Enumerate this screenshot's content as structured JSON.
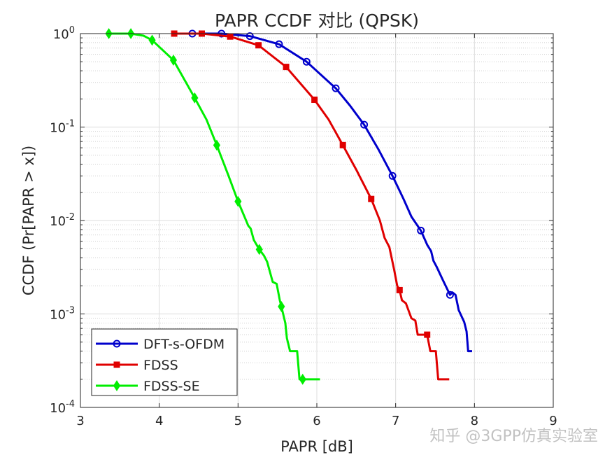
{
  "chart_data": {
    "type": "line",
    "title": "PAPR CCDF 对比 (QPSK)",
    "xlabel": "PAPR [dB]",
    "ylabel": "CCDF (Pr[PAPR > x])",
    "xlim": [
      3,
      9
    ],
    "ylim": [
      0.0001,
      1
    ],
    "yscale": "log",
    "xticks": [
      "3",
      "4",
      "5",
      "6",
      "7",
      "8",
      "9"
    ],
    "yticks": [
      {
        "base": "10",
        "exp": "0"
      },
      {
        "base": "10",
        "exp": "-1"
      },
      {
        "base": "10",
        "exp": "-2"
      },
      {
        "base": "10",
        "exp": "-3"
      },
      {
        "base": "10",
        "exp": "-4"
      }
    ],
    "grid": true,
    "minor_grid": true,
    "legend_position": "bottom-left",
    "series": [
      {
        "name": "DFT-s-OFDM",
        "color": "#0000cc",
        "marker": "circle",
        "points": [
          [
            4.42,
            1
          ],
          [
            4.79,
            1
          ],
          [
            5.15,
            0.94
          ],
          [
            5.52,
            0.77
          ],
          [
            5.87,
            0.5
          ],
          [
            6.24,
            0.26
          ],
          [
            6.42,
            0.17
          ],
          [
            6.6,
            0.106
          ],
          [
            6.78,
            0.058
          ],
          [
            6.96,
            0.03
          ],
          [
            7.1,
            0.017
          ],
          [
            7.2,
            0.011
          ],
          [
            7.32,
            0.0078
          ],
          [
            7.4,
            0.0055
          ],
          [
            7.45,
            0.0047
          ],
          [
            7.48,
            0.0037
          ],
          [
            7.52,
            0.0032
          ],
          [
            7.6,
            0.0023
          ],
          [
            7.69,
            0.0016
          ],
          [
            7.72,
            0.0017
          ],
          [
            7.76,
            0.0016
          ],
          [
            7.8,
            0.0011
          ],
          [
            7.87,
            0.00082
          ],
          [
            7.9,
            0.00065
          ],
          [
            7.92,
            0.0004
          ],
          [
            7.97,
            0.0004
          ]
        ],
        "markers": [
          [
            4.42,
            1
          ],
          [
            4.79,
            1
          ],
          [
            5.15,
            0.94
          ],
          [
            5.52,
            0.77
          ],
          [
            5.87,
            0.5
          ],
          [
            6.24,
            0.26
          ],
          [
            6.6,
            0.106
          ],
          [
            6.96,
            0.03
          ],
          [
            7.32,
            0.0078
          ],
          [
            7.69,
            0.0016
          ]
        ]
      },
      {
        "name": "FDSS",
        "color": "#e00000",
        "marker": "square",
        "points": [
          [
            4.19,
            1
          ],
          [
            4.54,
            1
          ],
          [
            4.9,
            0.93
          ],
          [
            5.26,
            0.75
          ],
          [
            5.61,
            0.44
          ],
          [
            5.97,
            0.196
          ],
          [
            6.15,
            0.12
          ],
          [
            6.33,
            0.064
          ],
          [
            6.5,
            0.035
          ],
          [
            6.69,
            0.017
          ],
          [
            6.8,
            0.01
          ],
          [
            6.86,
            0.0065
          ],
          [
            6.92,
            0.0052
          ],
          [
            6.98,
            0.003
          ],
          [
            7.02,
            0.002
          ],
          [
            7.05,
            0.0018
          ],
          [
            7.08,
            0.0014
          ],
          [
            7.13,
            0.0013
          ],
          [
            7.2,
            0.0009
          ],
          [
            7.25,
            0.00085
          ],
          [
            7.28,
            0.0006
          ],
          [
            7.4,
            0.0006
          ],
          [
            7.44,
            0.0004
          ],
          [
            7.51,
            0.0004
          ],
          [
            7.54,
            0.0002
          ],
          [
            7.68,
            0.0002
          ]
        ],
        "markers": [
          [
            4.19,
            1
          ],
          [
            4.54,
            1
          ],
          [
            4.9,
            0.93
          ],
          [
            5.26,
            0.75
          ],
          [
            5.61,
            0.44
          ],
          [
            5.97,
            0.196
          ],
          [
            6.33,
            0.064
          ],
          [
            6.69,
            0.017
          ],
          [
            7.05,
            0.0018
          ],
          [
            7.4,
            0.0006
          ]
        ]
      },
      {
        "name": "FDSS-SE",
        "color": "#00ee00",
        "marker": "diamond",
        "points": [
          [
            3.36,
            1
          ],
          [
            3.64,
            1
          ],
          [
            3.8,
            0.95
          ],
          [
            3.91,
            0.85
          ],
          [
            4.18,
            0.52
          ],
          [
            4.45,
            0.205
          ],
          [
            4.6,
            0.12
          ],
          [
            4.73,
            0.064
          ],
          [
            4.88,
            0.03
          ],
          [
            5.0,
            0.016
          ],
          [
            5.13,
            0.0088
          ],
          [
            5.16,
            0.0082
          ],
          [
            5.2,
            0.0062
          ],
          [
            5.27,
            0.0049
          ],
          [
            5.33,
            0.0042
          ],
          [
            5.37,
            0.0036
          ],
          [
            5.44,
            0.0022
          ],
          [
            5.49,
            0.0021
          ],
          [
            5.53,
            0.0014
          ],
          [
            5.55,
            0.0012
          ],
          [
            5.6,
            0.0008
          ],
          [
            5.62,
            0.00055
          ],
          [
            5.66,
            0.0004
          ],
          [
            5.75,
            0.0004
          ],
          [
            5.78,
            0.0002
          ],
          [
            6.04,
            0.0002
          ]
        ],
        "markers": [
          [
            3.36,
            1
          ],
          [
            3.64,
            1
          ],
          [
            3.91,
            0.85
          ],
          [
            4.18,
            0.52
          ],
          [
            4.45,
            0.205
          ],
          [
            4.73,
            0.064
          ],
          [
            5.0,
            0.016
          ],
          [
            5.27,
            0.0049
          ],
          [
            5.55,
            0.0012
          ],
          [
            5.82,
            0.0002
          ]
        ]
      }
    ]
  },
  "watermark": "知乎 @3GPP仿真实验室"
}
